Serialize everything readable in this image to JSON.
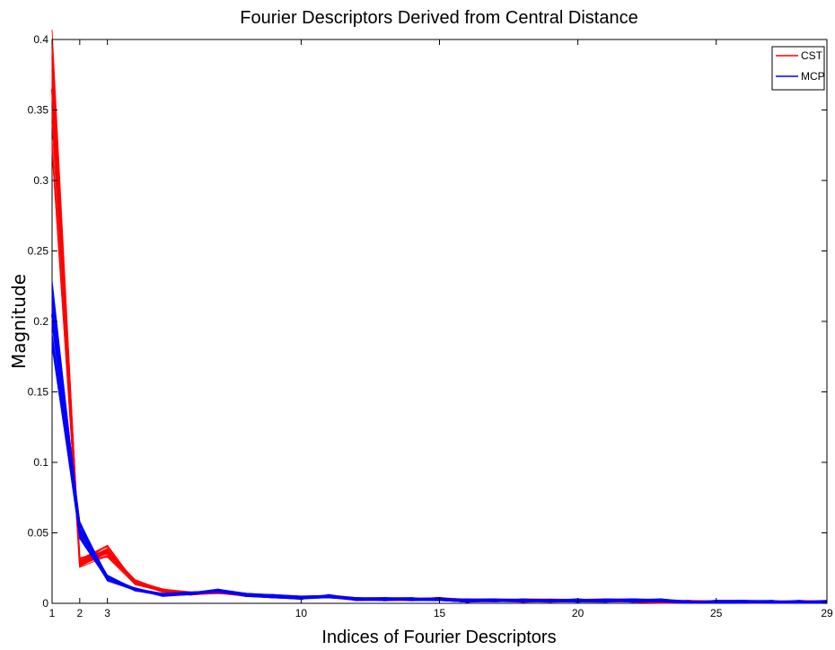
{
  "chart_data": {
    "type": "line",
    "title": "Fourier Descriptors Derived from Central Distance",
    "xlabel": "Indices of Fourier Descriptors",
    "ylabel": "Magnitude",
    "xlim": [
      1,
      29
    ],
    "ylim": [
      0,
      0.4
    ],
    "x_ticks": [
      1,
      2,
      3,
      10,
      15,
      20,
      25,
      29
    ],
    "y_ticks": [
      0,
      0.05,
      0.1,
      0.15,
      0.2,
      0.25,
      0.3,
      0.35,
      0.4
    ],
    "grid": false,
    "legend": {
      "position": "top-right",
      "entries": [
        "CST",
        "MCP"
      ]
    },
    "x": [
      1,
      2,
      3,
      4,
      5,
      6,
      7,
      8,
      9,
      10,
      11,
      12,
      13,
      14,
      15,
      16,
      17,
      18,
      19,
      20,
      21,
      22,
      23,
      24,
      25,
      26,
      27,
      28,
      29
    ],
    "series": [
      {
        "name": "CST",
        "color": "#ff0000",
        "values": [
          0.365,
          0.029,
          0.037,
          0.015,
          0.009,
          0.007,
          0.008,
          0.006,
          0.005,
          0.004,
          0.005,
          0.003,
          0.003,
          0.003,
          0.003,
          0.002,
          0.002,
          0.002,
          0.002,
          0.002,
          0.002,
          0.002,
          0.001,
          0.001,
          0.001,
          0.001,
          0.001,
          0.001,
          0.001
        ]
      },
      {
        "name": "MCP",
        "color": "#0000ff",
        "values": [
          0.205,
          0.052,
          0.018,
          0.01,
          0.006,
          0.007,
          0.009,
          0.006,
          0.005,
          0.004,
          0.005,
          0.003,
          0.003,
          0.003,
          0.003,
          0.002,
          0.002,
          0.002,
          0.002,
          0.002,
          0.002,
          0.002,
          0.002,
          0.001,
          0.001,
          0.001,
          0.001,
          0.001,
          0.001
        ]
      }
    ]
  }
}
